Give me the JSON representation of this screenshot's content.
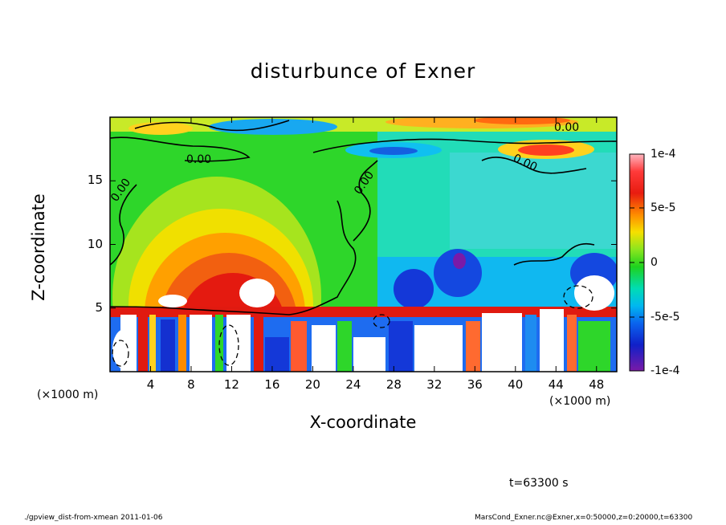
{
  "chart_data": {
    "type": "heatmap",
    "title": "disturbunce of Exner",
    "xlabel": "X-coordinate",
    "ylabel": "Z-coordinate",
    "x_unit": "(×1000 m)",
    "x_ticks": [
      "4",
      "8",
      "12",
      "16",
      "20",
      "24",
      "28",
      "32",
      "36",
      "40",
      "44",
      "48"
    ],
    "y_ticks": [
      "5",
      "10",
      "15"
    ],
    "xlim": [
      0,
      50
    ],
    "ylim": [
      0,
      20
    ],
    "colorbar": {
      "ticks": [
        "1e-4",
        "5e-5",
        "0",
        "-5e-5",
        "-1e-4"
      ],
      "range": [
        -0.0001,
        0.0001
      ]
    },
    "contour_labels": [
      "0.00",
      "0.00",
      "0.00",
      "0.00",
      "0.00"
    ],
    "colors": {
      "max": "#ff9aa0",
      "high": "#e8201a",
      "mid_high": "#ffa000",
      "zero": "#28d21c",
      "mid_low": "#00dcc8",
      "low": "#1030d8",
      "min": "#7a1aa8"
    }
  },
  "annotations": {
    "time": "t=63300 s",
    "footer_left": "./gpview_dist-from-xmean   2011-01-06",
    "footer_right": "MarsCond_Exner.nc@Exner,x=0:50000,z=0:20000,t=63300"
  }
}
